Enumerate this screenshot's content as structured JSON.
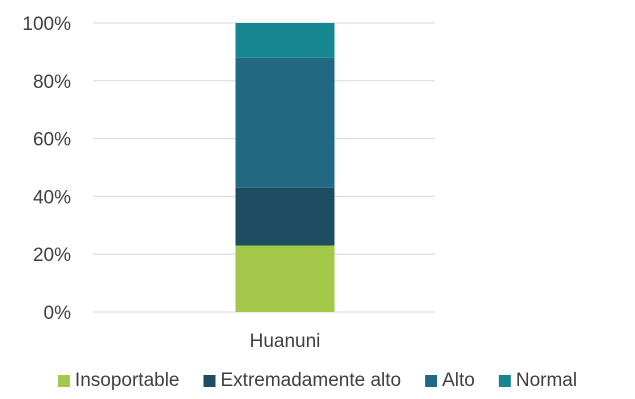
{
  "chart_data": {
    "type": "bar",
    "stacked": true,
    "percent": true,
    "categories": [
      "Huanuni"
    ],
    "series": [
      {
        "name": "Insoportable",
        "values": [
          23
        ],
        "color": "#a4c94a"
      },
      {
        "name": "Extremadamente alto",
        "values": [
          20
        ],
        "color": "#1e4d62"
      },
      {
        "name": "Alto",
        "values": [
          45
        ],
        "color": "#226883"
      },
      {
        "name": "Normal",
        "values": [
          12
        ],
        "color": "#168791"
      }
    ],
    "ylim": [
      0,
      100
    ],
    "yticks": [
      "0%",
      "20%",
      "40%",
      "60%",
      "80%",
      "100%"
    ],
    "grid": true,
    "legend": "bottom",
    "title": "",
    "xlabel": "",
    "ylabel": ""
  }
}
